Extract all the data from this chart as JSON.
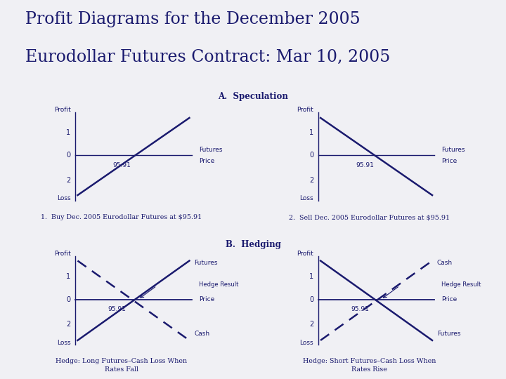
{
  "title_line1": "Profit Diagrams for the December 2005",
  "title_line2": "Eurodollar Futures Contract: Mar 10, 2005",
  "title_fontsize": 17,
  "bg_color": "#f0f0f4",
  "line_color": "#1a1a6e",
  "section_a_title": "A.  Speculation",
  "section_b_title": "B.  Hedging",
  "futures_price": "95.91",
  "caption1": "1.  Buy Dec. 2005 Eurodollar Futures at $95.91",
  "caption2": "2.  Sell Dec. 2005 Eurodollar Futures at $95.91",
  "caption3": "Hedge: Long Futures–Cash Loss When\nRates Fall",
  "caption4": "Hedge: Short Futures–Cash Loss When\nRates Rise"
}
